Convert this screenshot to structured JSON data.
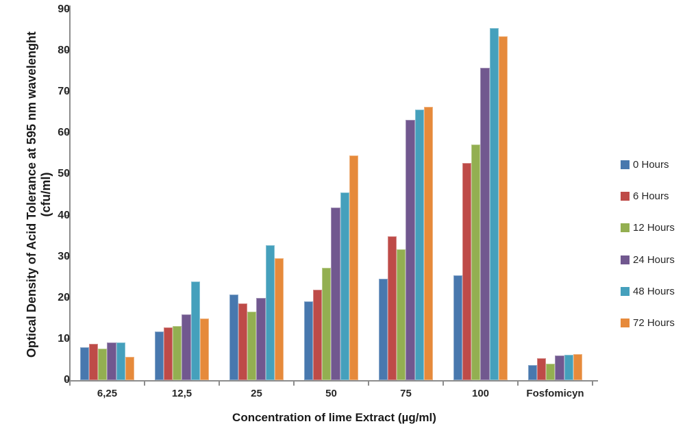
{
  "chart_data": {
    "type": "bar",
    "title": "",
    "xlabel": "Concentration  of lime Extract (µg/ml)",
    "ylabel_line1": "Optical Density of Acid Tolerance at 595 nm wavelenght",
    "ylabel_line2": "(cfu/ml)",
    "categories": [
      "6,25",
      "12,5",
      "25",
      "50",
      "75",
      "100",
      "Fosfomicyn"
    ],
    "series": [
      {
        "name": "0 Hours",
        "color": "#4878AE",
        "values": [
          8.0,
          11.8,
          20.8,
          19.2,
          24.7,
          25.4,
          3.7
        ]
      },
      {
        "name": "6 Hours",
        "color": "#BE4B48",
        "values": [
          8.8,
          12.9,
          18.6,
          22.0,
          35.0,
          52.8,
          5.3
        ]
      },
      {
        "name": "12 Hours",
        "color": "#93AF51",
        "values": [
          7.7,
          13.2,
          16.7,
          27.3,
          31.8,
          57.2,
          4.0
        ]
      },
      {
        "name": "24 Hours",
        "color": "#71588F",
        "values": [
          9.1,
          16.0,
          19.9,
          42.0,
          63.3,
          75.8,
          6.0
        ]
      },
      {
        "name": "48 Hours",
        "color": "#45A0BC",
        "values": [
          9.1,
          24.0,
          32.8,
          45.6,
          65.7,
          85.5,
          6.1
        ]
      },
      {
        "name": "72 Hours",
        "color": "#E68A3B",
        "values": [
          5.6,
          15.0,
          29.7,
          54.6,
          66.4,
          83.5,
          6.4
        ]
      }
    ],
    "ylim": [
      0,
      90
    ],
    "ytick_step": 10,
    "ytick_labels": [
      "0",
      "10",
      "20",
      "30",
      "40",
      "50",
      "60",
      "70",
      "80",
      "90"
    ],
    "grid": false,
    "legend_position": "right"
  }
}
